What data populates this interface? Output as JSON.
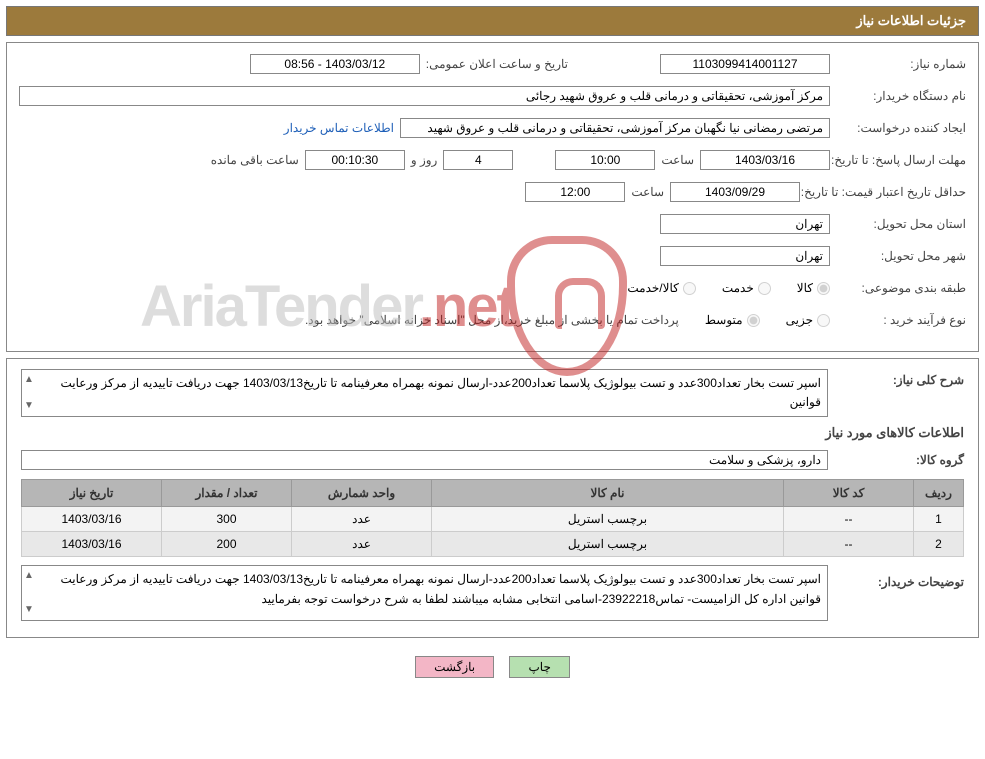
{
  "header": {
    "title": "جزئیات اطلاعات نیاز"
  },
  "fields": {
    "need_no_label": "شماره نیاز:",
    "need_no": "1103099414001127",
    "announce_date_label": "تاریخ و ساعت اعلان عمومی:",
    "announce_date": "1403/03/12 - 08:56",
    "buyer_org_label": "نام دستگاه خریدار:",
    "buyer_org": "مرکز آموزشی، تحقیقاتی و درمانی قلب و عروق شهید رجائی",
    "requester_label": "ایجاد کننده درخواست:",
    "requester": "مرتضی رمضانی نیا نگهبان مرکز آموزشی، تحقیقاتی و درمانی قلب و عروق شهید",
    "contact_link": "اطلاعات تماس خریدار",
    "deadline_label": "مهلت ارسال پاسخ: تا تاریخ:",
    "deadline_date": "1403/03/16",
    "time_label": "ساعت",
    "deadline_time": "10:00",
    "days": "4",
    "days_and": "روز و",
    "countdown": "00:10:30",
    "remain_label": "ساعت باقی مانده",
    "validity_label": "حداقل تاریخ اعتبار قیمت: تا تاریخ:",
    "validity_date": "1403/09/29",
    "validity_time": "12:00",
    "province_label": "استان محل تحویل:",
    "province": "تهران",
    "city_label": "شهر محل تحویل:",
    "city": "تهران",
    "category_label": "طبقه بندی موضوعی:",
    "cat_goods": "کالا",
    "cat_service": "خدمت",
    "cat_goods_service": "کالا/خدمت",
    "purchase_type_label": "نوع فرآیند خرید :",
    "pt_small": "جزیی",
    "pt_medium": "متوسط",
    "payment_note": "پرداخت تمام یا بخشی از مبلغ خرید،از محل \"اسناد خزانه اسلامی\" خواهد بود."
  },
  "need_desc": {
    "label": "شرح کلی نیاز:",
    "text": "اسپر تست بخار تعداد300عدد و تست بیولوژیک پلاسما تعداد200عدد-ارسال نمونه بهمراه معرفینامه تا تاریخ1403/03/13 جهت دریافت تاییدیه از مرکز ورعایت قوانین"
  },
  "items_title": "اطلاعات کالاهای مورد نیاز",
  "group": {
    "label": "گروه کالا:",
    "value": "دارو، پزشکی و سلامت"
  },
  "table": {
    "headers": {
      "row": "ردیف",
      "code": "کد کالا",
      "name": "نام کالا",
      "unit": "واحد شمارش",
      "qty": "تعداد / مقدار",
      "date": "تاریخ نیاز"
    },
    "rows": [
      {
        "n": "1",
        "code": "--",
        "name": "برچسب استریل",
        "unit": "عدد",
        "qty": "300",
        "date": "1403/03/16"
      },
      {
        "n": "2",
        "code": "--",
        "name": "برچسب استریل",
        "unit": "عدد",
        "qty": "200",
        "date": "1403/03/16"
      }
    ]
  },
  "buyer_notes": {
    "label": "توضیحات خریدار:",
    "text": "اسپر تست بخار تعداد300عدد و تست بیولوژیک پلاسما تعداد200عدد-ارسال نمونه بهمراه معرفینامه تا تاریخ1403/03/13 جهت دریافت تاییدیه از مرکز ورعایت قوانین اداره کل الزامیست- تماس23922218-اسامی انتخابی مشابه میباشند لطفا به شرح درخواست توجه بفرمایید"
  },
  "buttons": {
    "print": "چاپ",
    "back": "بازگشت"
  },
  "watermark": {
    "text1": "AriaTender",
    "text2": ".net"
  },
  "colors": {
    "header_bg": "#9c7a3c",
    "border": "#888888",
    "th_bg": "#b6b6b6",
    "link": "#1e5fb8",
    "btn_green": "#b6e0b0",
    "btn_pink": "#f3b6c6",
    "wm_red": "#c02020",
    "wm_gray": "#bcbcbc"
  },
  "layout": {
    "small_field_w": 150,
    "med_field_w": 120,
    "tiny_field_w": 70,
    "col_widths": {
      "row": 50,
      "code": 130,
      "name": 340,
      "unit": 140,
      "qty": 130,
      "date": 140
    }
  }
}
